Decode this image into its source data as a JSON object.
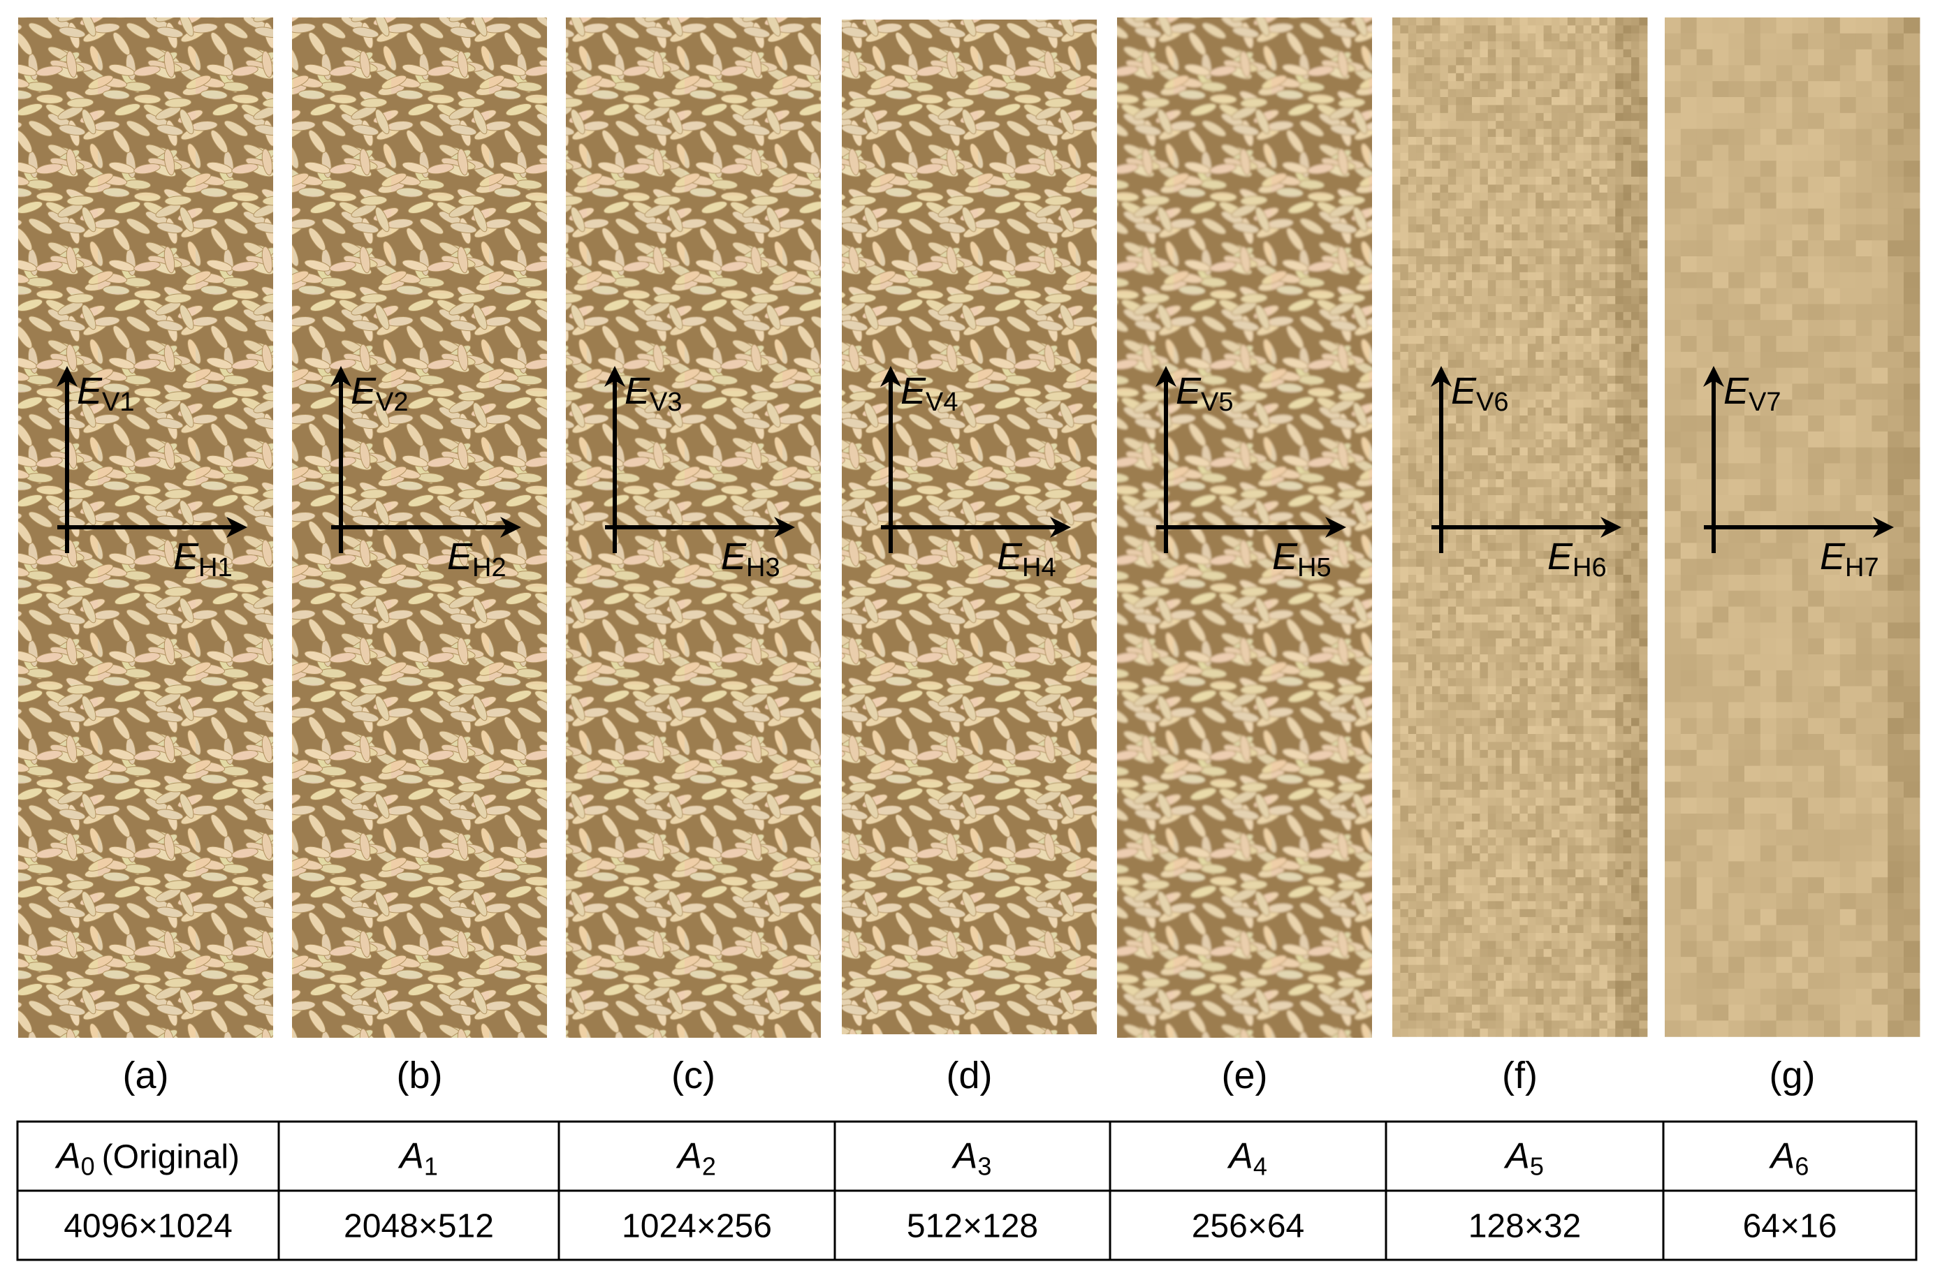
{
  "panels": [
    {
      "caption": "(a)",
      "vertical_axis": {
        "symbol": "E",
        "subscript": "V1"
      },
      "horizontal_axis": {
        "symbol": "E",
        "subscript": "H1"
      }
    },
    {
      "caption": "(b)",
      "vertical_axis": {
        "symbol": "E",
        "subscript": "V2"
      },
      "horizontal_axis": {
        "symbol": "E",
        "subscript": "H2"
      }
    },
    {
      "caption": "(c)",
      "vertical_axis": {
        "symbol": "E",
        "subscript": "V3"
      },
      "horizontal_axis": {
        "symbol": "E",
        "subscript": "H3"
      }
    },
    {
      "caption": "(d)",
      "vertical_axis": {
        "symbol": "E",
        "subscript": "V4"
      },
      "horizontal_axis": {
        "symbol": "E",
        "subscript": "H4"
      }
    },
    {
      "caption": "(e)",
      "vertical_axis": {
        "symbol": "E",
        "subscript": "V5"
      },
      "horizontal_axis": {
        "symbol": "E",
        "subscript": "H5"
      }
    },
    {
      "caption": "(f)",
      "vertical_axis": {
        "symbol": "E",
        "subscript": "V6"
      },
      "horizontal_axis": {
        "symbol": "E",
        "subscript": "H6"
      }
    },
    {
      "caption": "(g)",
      "vertical_axis": {
        "symbol": "E",
        "subscript": "V7"
      },
      "horizontal_axis": {
        "symbol": "E",
        "subscript": "H7"
      }
    }
  ],
  "table": {
    "rows": [
      [
        {
          "symbol": "A",
          "subscript": "0",
          "suffix": "(Original)"
        },
        {
          "symbol": "A",
          "subscript": "1"
        },
        {
          "symbol": "A",
          "subscript": "2"
        },
        {
          "symbol": "A",
          "subscript": "3"
        },
        {
          "symbol": "A",
          "subscript": "4"
        },
        {
          "symbol": "A",
          "subscript": "5"
        },
        {
          "symbol": "A",
          "subscript": "6"
        }
      ],
      [
        "4096×1024",
        "2048×512",
        "1024×256",
        "512×128",
        "256×64",
        "128×32",
        "64×16"
      ]
    ]
  }
}
